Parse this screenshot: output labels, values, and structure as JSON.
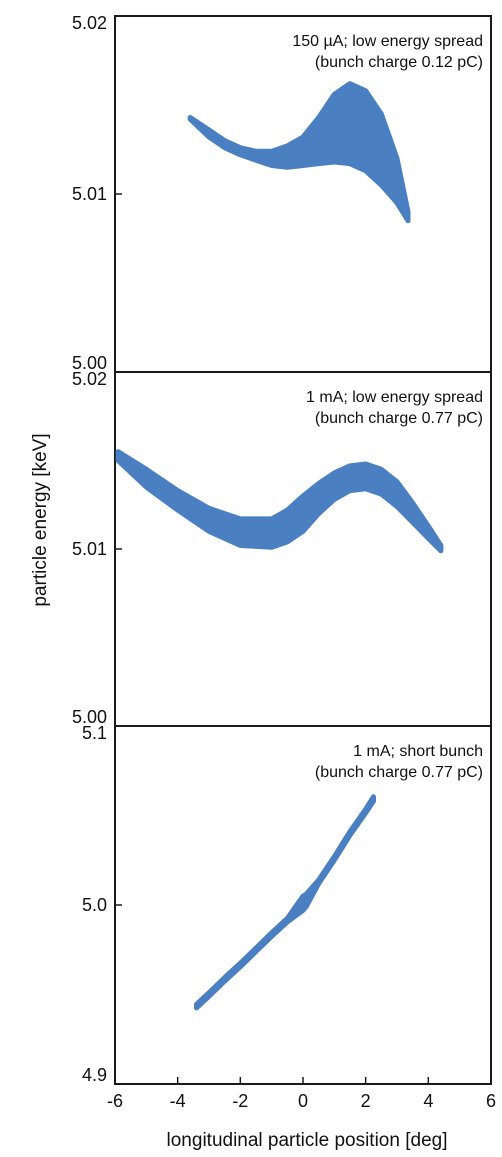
{
  "chart_data": {
    "type": "scatter",
    "xlabel": "longitudinal particle position [deg]",
    "ylabel": "particle energy [keV]",
    "xlim": [
      -6,
      6
    ],
    "xticks": [
      "-6",
      "-4",
      "-2",
      "0",
      "2",
      "4",
      "6"
    ],
    "marker_color": "#4a7fc1",
    "panels": [
      {
        "annotation": [
          "150 µA; low energy spread",
          "(bunch charge 0.12 pC)"
        ],
        "ylim": [
          5.0,
          5.02
        ],
        "yticks": [
          {
            "value": 5.02,
            "label": "5.02"
          },
          {
            "value": 5.01,
            "label": "5.01"
          },
          {
            "value": 5.0,
            "label": "5.00"
          }
        ],
        "series": [
          {
            "x": [
              -3.6,
              -3.0,
              -2.5,
              -2.0,
              -1.5,
              -1.0,
              -0.5,
              0.0,
              0.5,
              1.0,
              1.5,
              2.0,
              2.5,
              3.0,
              3.35
            ],
            "y_low": [
              5.0142,
              5.0132,
              5.0126,
              5.0122,
              5.0119,
              5.0116,
              5.0115,
              5.0116,
              5.0117,
              5.0118,
              5.0117,
              5.0113,
              5.0105,
              5.0095,
              5.0085
            ],
            "y_high": [
              5.0143,
              5.0136,
              5.013,
              5.0126,
              5.0124,
              5.0124,
              5.0127,
              5.0132,
              5.0143,
              5.0156,
              5.0162,
              5.0158,
              5.0145,
              5.012,
              5.009
            ]
          }
        ]
      },
      {
        "annotation": [
          "1 mA; low energy spread",
          "(bunch charge 0.77 pC)"
        ],
        "ylim": [
          5.0,
          5.02
        ],
        "yticks": [
          {
            "value": 5.02,
            "label": "5.02"
          },
          {
            "value": 5.01,
            "label": "5.01"
          },
          {
            "value": 5.0,
            "label": "5.00"
          }
        ],
        "series": [
          {
            "x": [
              -5.9,
              -5.0,
              -4.0,
              -3.0,
              -2.0,
              -1.0,
              -0.5,
              0.0,
              0.5,
              1.0,
              1.5,
              2.0,
              2.5,
              3.0,
              3.5,
              4.0,
              4.4
            ],
            "y_low": [
              5.015,
              5.0135,
              5.0122,
              5.011,
              5.0102,
              5.0101,
              5.0104,
              5.011,
              5.012,
              5.0128,
              5.0133,
              5.0134,
              5.0131,
              5.0124,
              5.0115,
              5.0106,
              5.0099
            ],
            "y_high": [
              5.0155,
              5.0145,
              5.0133,
              5.0123,
              5.0117,
              5.0117,
              5.0122,
              5.013,
              5.0137,
              5.0143,
              5.0147,
              5.0148,
              5.0145,
              5.0138,
              5.0126,
              5.0113,
              5.0102
            ]
          }
        ]
      },
      {
        "annotation": [
          "1 mA; short bunch",
          "(bunch charge 0.77 pC)"
        ],
        "ylim": [
          4.9,
          5.1
        ],
        "yticks": [
          {
            "value": 5.1,
            "label": "5.1"
          },
          {
            "value": 5.0,
            "label": "5.0"
          },
          {
            "value": 4.9,
            "label": "4.9"
          }
        ],
        "series": [
          {
            "x": [
              -3.4,
              -3.0,
              -2.5,
              -2.0,
              -1.5,
              -1.0,
              -0.5,
              0.0,
              0.1,
              0.5,
              1.0,
              1.5,
              2.0,
              2.25
            ],
            "y_low": [
              4.9425,
              4.949,
              4.9575,
              4.9655,
              4.974,
              4.9825,
              4.9905,
              4.997,
              4.999,
              5.012,
              5.025,
              5.039,
              5.0515,
              5.058
            ],
            "y_high": [
              4.9445,
              4.951,
              4.9595,
              4.9675,
              4.976,
              4.9845,
              4.9925,
              5.005,
              5.006,
              5.014,
              5.027,
              5.041,
              5.0535,
              5.0605
            ]
          }
        ]
      }
    ]
  }
}
